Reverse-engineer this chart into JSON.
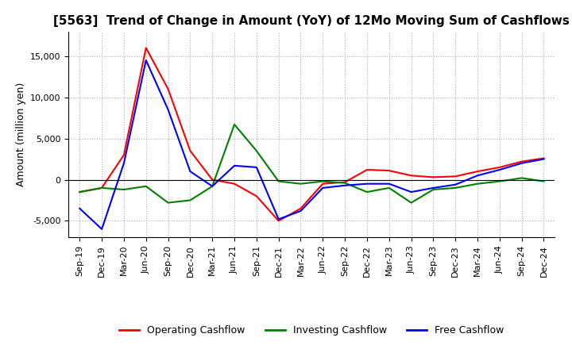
{
  "title": "[5563]  Trend of Change in Amount (YoY) of 12Mo Moving Sum of Cashflows",
  "ylabel": "Amount (million yen)",
  "x_labels": [
    "Sep-19",
    "Dec-19",
    "Mar-20",
    "Jun-20",
    "Sep-20",
    "Dec-20",
    "Mar-21",
    "Jun-21",
    "Sep-21",
    "Dec-21",
    "Mar-22",
    "Jun-22",
    "Sep-22",
    "Dec-22",
    "Mar-23",
    "Jun-23",
    "Sep-23",
    "Dec-23",
    "Mar-24",
    "Jun-24",
    "Sep-24",
    "Dec-24"
  ],
  "operating": [
    -1500,
    -1000,
    3000,
    16000,
    11000,
    3500,
    0,
    -500,
    -2000,
    -5000,
    -3500,
    -500,
    -300,
    1200,
    1100,
    500,
    300,
    400,
    1000,
    1500,
    2200,
    2600
  ],
  "investing": [
    -1500,
    -1000,
    -1200,
    -800,
    -2800,
    -2500,
    -800,
    6700,
    3500,
    -200,
    -500,
    -200,
    -400,
    -1500,
    -1000,
    -2800,
    -1200,
    -1000,
    -500,
    -200,
    200,
    -200
  ],
  "free": [
    -3500,
    -6000,
    2000,
    14500,
    8500,
    1000,
    -800,
    1700,
    1500,
    -4800,
    -3800,
    -1000,
    -700,
    -500,
    -500,
    -1500,
    -1000,
    -600,
    500,
    1200,
    2000,
    2500
  ],
  "ylim": [
    -7000,
    18000
  ],
  "yticks": [
    -5000,
    0,
    5000,
    10000,
    15000
  ],
  "operating_color": "#ff0000",
  "investing_color": "#008000",
  "free_color": "#0000ff",
  "grid_color": "#b0b0b0",
  "background_color": "#ffffff",
  "legend_labels": [
    "Operating Cashflow",
    "Investing Cashflow",
    "Free Cashflow"
  ],
  "title_fontsize": 11,
  "axis_fontsize": 8,
  "ylabel_fontsize": 9
}
